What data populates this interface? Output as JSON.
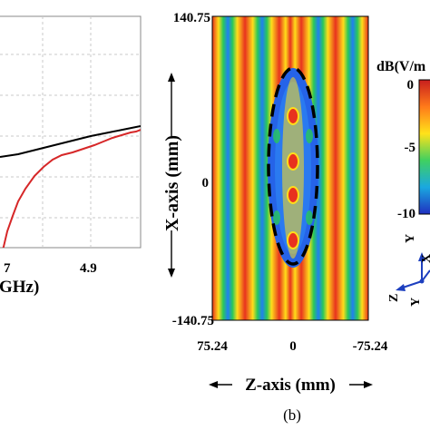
{
  "left_plot": {
    "x_ticks": [
      "7",
      "4.9"
    ],
    "x_axis_fragment": "GHz)",
    "series": [
      {
        "color": "#000000"
      },
      {
        "color": "#d62728"
      }
    ]
  },
  "field_plot": {
    "y_top": "140.75",
    "y_bottom": "-140.75",
    "y_zero": "0",
    "y_axis_label": "X-axis (mm)",
    "x_left": "75.24",
    "x_zero": "0",
    "x_right": "-75.24",
    "x_axis_label": "Z-axis (mm)",
    "caption": "(b)"
  },
  "colorbar": {
    "title": "dB(V/m",
    "ticks": [
      "0",
      "-5",
      "-10"
    ]
  },
  "coord_icon": {
    "labels": [
      "Y",
      "X",
      "Z",
      "Y"
    ]
  }
}
